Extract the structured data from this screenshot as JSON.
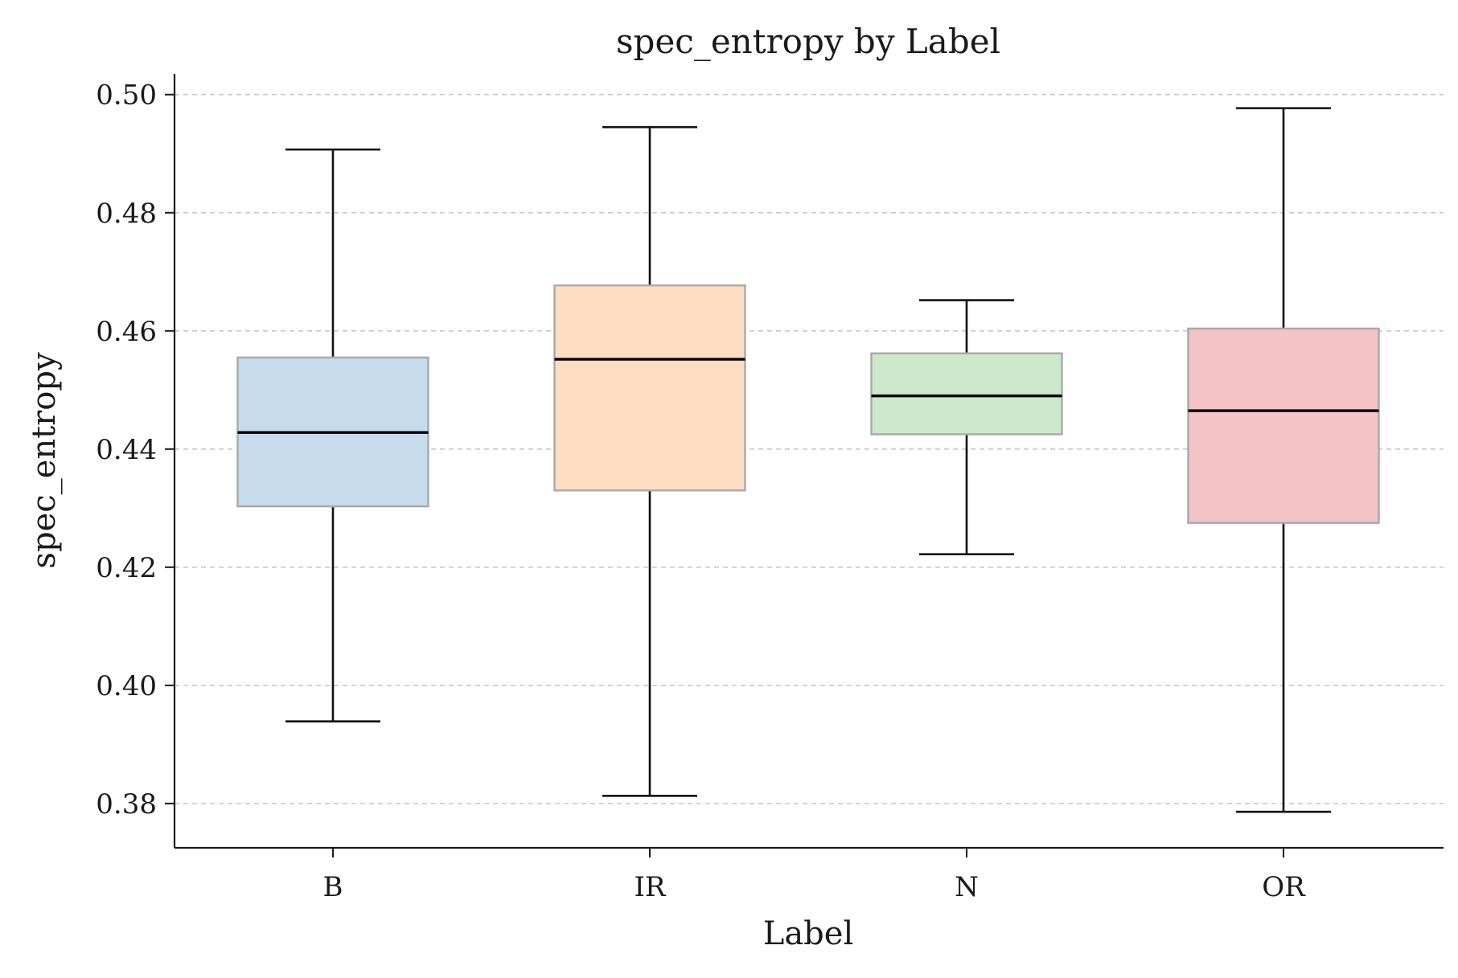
{
  "chart_data": {
    "type": "box",
    "title": "spec_entropy by Label",
    "xlabel": "Label",
    "ylabel": "spec_entropy",
    "categories": [
      "B",
      "IR",
      "N",
      "OR"
    ],
    "ylim": [
      0.3725,
      0.5035
    ],
    "yticks": [
      0.38,
      0.4,
      0.42,
      0.44,
      0.46,
      0.48,
      0.5
    ],
    "ytick_labels": [
      "0.38",
      "0.40",
      "0.42",
      "0.44",
      "0.46",
      "0.48",
      "0.50"
    ],
    "grid": "y-dashed",
    "boxes": [
      {
        "label": "B",
        "whisker_low": 0.3939,
        "q1": 0.4303,
        "median": 0.4428,
        "q3": 0.4555,
        "whisker_high": 0.4907,
        "color": "#c6dbec"
      },
      {
        "label": "IR",
        "whisker_low": 0.3813,
        "q1": 0.433,
        "median": 0.4552,
        "q3": 0.4677,
        "whisker_high": 0.4945,
        "color": "#fddec2"
      },
      {
        "label": "N",
        "whisker_low": 0.4222,
        "q1": 0.4425,
        "median": 0.449,
        "q3": 0.4562,
        "whisker_high": 0.4652,
        "color": "#cce8cb"
      },
      {
        "label": "OR",
        "whisker_low": 0.3786,
        "q1": 0.4275,
        "median": 0.4465,
        "q3": 0.4604,
        "whisker_high": 0.4977,
        "color": "#f4c4c7"
      }
    ]
  }
}
